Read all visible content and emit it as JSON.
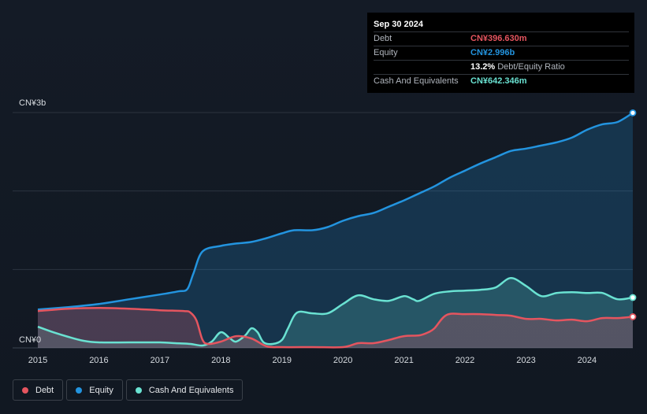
{
  "tooltip": {
    "date": "Sep 30 2024",
    "debt_label": "Debt",
    "debt_value": "CN¥396.630m",
    "equity_label": "Equity",
    "equity_value": "CN¥2.996b",
    "ratio_value": "13.2%",
    "ratio_label": "Debt/Equity Ratio",
    "cash_label": "Cash And Equivalents",
    "cash_value": "CN¥642.346m"
  },
  "legend": {
    "debt": "Debt",
    "equity": "Equity",
    "cash": "Cash And Equivalents"
  },
  "colors": {
    "debt": "#e5555f",
    "equity": "#2394df",
    "cash": "#6ae2d2",
    "grid": "#2c3440",
    "axis_text": "#d7dbe0"
  },
  "chart_data": {
    "type": "area",
    "title": "",
    "xlabel": "",
    "ylabel": "",
    "unit": "CN¥ billions",
    "xlim": [
      2015,
      2024.75
    ],
    "ylim": [
      0,
      3
    ],
    "x_ticks": [
      "2015",
      "2016",
      "2017",
      "2018",
      "2019",
      "2020",
      "2021",
      "2022",
      "2023",
      "2024"
    ],
    "y_tick_labels": [
      "CN¥0",
      "CN¥3b"
    ],
    "grid": true,
    "series": [
      {
        "name": "Equity",
        "key": "equity",
        "x": [
          2015.0,
          2015.5,
          2016.0,
          2016.5,
          2017.0,
          2017.3,
          2017.45,
          2017.55,
          2017.7,
          2018.0,
          2018.25,
          2018.5,
          2018.75,
          2019.0,
          2019.2,
          2019.5,
          2019.75,
          2020.0,
          2020.25,
          2020.5,
          2020.75,
          2021.0,
          2021.25,
          2021.5,
          2021.75,
          2022.0,
          2022.25,
          2022.5,
          2022.75,
          2023.0,
          2023.25,
          2023.5,
          2023.75,
          2024.0,
          2024.25,
          2024.5,
          2024.75
        ],
        "values": [
          0.49,
          0.52,
          0.56,
          0.62,
          0.68,
          0.72,
          0.75,
          0.95,
          1.23,
          1.3,
          1.33,
          1.35,
          1.4,
          1.46,
          1.5,
          1.5,
          1.54,
          1.62,
          1.68,
          1.72,
          1.8,
          1.88,
          1.97,
          2.06,
          2.17,
          2.26,
          2.35,
          2.43,
          2.51,
          2.54,
          2.58,
          2.62,
          2.68,
          2.78,
          2.85,
          2.88,
          2.996
        ]
      },
      {
        "name": "Cash And Equivalents",
        "key": "cash",
        "x": [
          2015.0,
          2015.25,
          2015.5,
          2015.75,
          2016.0,
          2016.5,
          2017.0,
          2017.25,
          2017.5,
          2017.7,
          2017.85,
          2018.0,
          2018.15,
          2018.25,
          2018.4,
          2018.5,
          2018.6,
          2018.7,
          2018.85,
          2019.0,
          2019.1,
          2019.25,
          2019.5,
          2019.75,
          2020.0,
          2020.25,
          2020.5,
          2020.75,
          2021.0,
          2021.15,
          2021.25,
          2021.5,
          2021.75,
          2022.0,
          2022.25,
          2022.5,
          2022.75,
          2023.0,
          2023.25,
          2023.5,
          2023.75,
          2024.0,
          2024.25,
          2024.5,
          2024.75
        ],
        "values": [
          0.27,
          0.2,
          0.14,
          0.09,
          0.07,
          0.07,
          0.07,
          0.06,
          0.05,
          0.03,
          0.08,
          0.2,
          0.12,
          0.08,
          0.16,
          0.25,
          0.2,
          0.07,
          0.05,
          0.1,
          0.25,
          0.45,
          0.44,
          0.44,
          0.56,
          0.67,
          0.62,
          0.6,
          0.66,
          0.62,
          0.6,
          0.69,
          0.72,
          0.73,
          0.74,
          0.77,
          0.89,
          0.79,
          0.66,
          0.7,
          0.71,
          0.7,
          0.7,
          0.62,
          0.642
        ]
      },
      {
        "name": "Debt",
        "key": "debt",
        "x": [
          2015.0,
          2015.5,
          2016.0,
          2016.5,
          2017.0,
          2017.4,
          2017.5,
          2017.6,
          2017.7,
          2017.8,
          2018.0,
          2018.25,
          2018.5,
          2018.75,
          2019.0,
          2019.5,
          2020.0,
          2020.25,
          2020.5,
          2020.75,
          2021.0,
          2021.25,
          2021.4,
          2021.5,
          2021.7,
          2022.0,
          2022.25,
          2022.5,
          2022.75,
          2023.0,
          2023.25,
          2023.5,
          2023.75,
          2024.0,
          2024.25,
          2024.5,
          2024.75
        ],
        "values": [
          0.47,
          0.5,
          0.51,
          0.5,
          0.48,
          0.47,
          0.45,
          0.35,
          0.1,
          0.05,
          0.08,
          0.15,
          0.12,
          0.02,
          0.01,
          0.01,
          0.01,
          0.06,
          0.06,
          0.1,
          0.15,
          0.16,
          0.2,
          0.25,
          0.42,
          0.43,
          0.43,
          0.42,
          0.41,
          0.37,
          0.37,
          0.35,
          0.36,
          0.34,
          0.38,
          0.38,
          0.397
        ]
      }
    ]
  }
}
